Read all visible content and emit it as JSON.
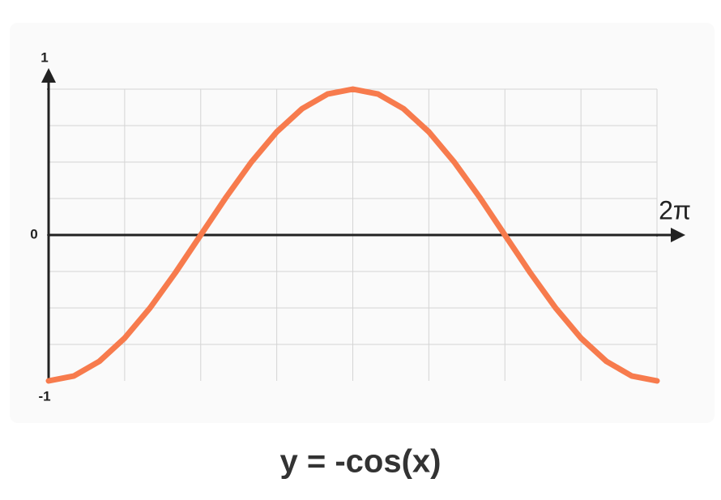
{
  "chart_data": {
    "type": "line",
    "title": "y = -cos(x)",
    "x": [
      0,
      0.262,
      0.524,
      0.785,
      1.047,
      1.309,
      1.571,
      1.833,
      2.094,
      2.356,
      2.618,
      2.88,
      3.142,
      3.403,
      3.665,
      3.927,
      4.189,
      4.451,
      4.712,
      4.974,
      5.236,
      5.498,
      5.76,
      6.021,
      6.283
    ],
    "values": [
      -1,
      -0.966,
      -0.866,
      -0.707,
      -0.5,
      -0.259,
      0,
      0.259,
      0.5,
      0.707,
      0.866,
      0.966,
      1,
      0.966,
      0.866,
      0.707,
      0.5,
      0.259,
      0,
      -0.259,
      -0.5,
      -0.707,
      -0.866,
      -0.966,
      -1
    ],
    "color": "#f77b4d",
    "xlim": [
      0,
      6.283
    ],
    "xticks": [
      {
        "value": 6.283,
        "label": "2π"
      }
    ],
    "ylim": [
      -1,
      1
    ],
    "yticks": [
      -1,
      0,
      1
    ],
    "grid": true
  }
}
